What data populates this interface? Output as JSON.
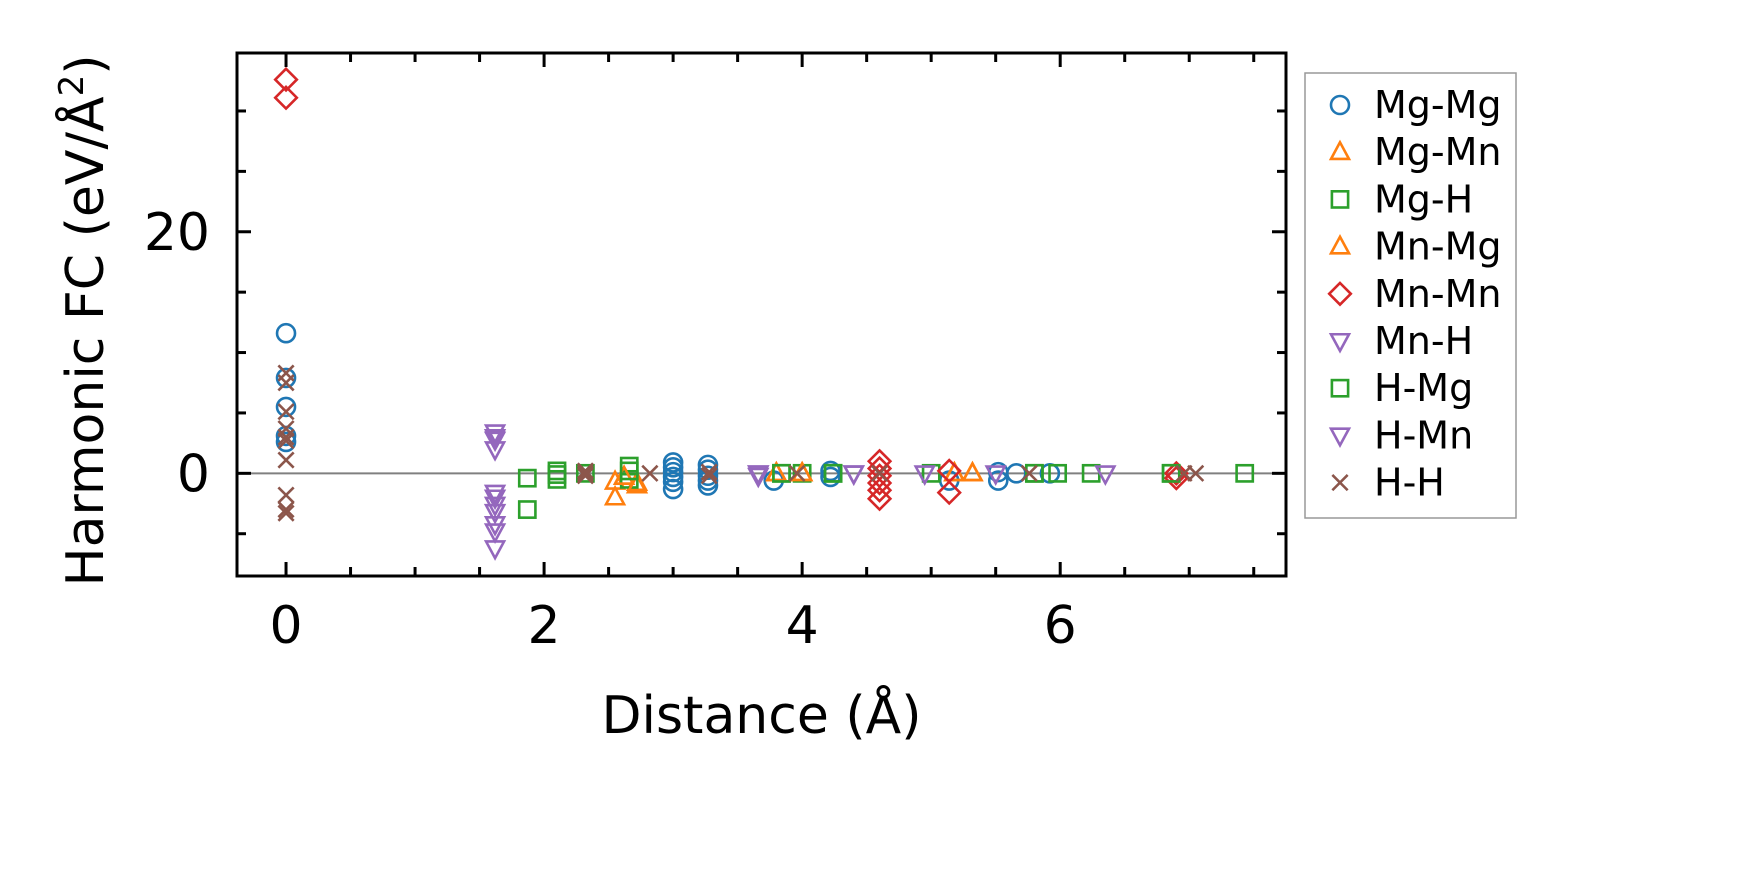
{
  "chart_data": {
    "type": "scatter",
    "title": "",
    "xlabel": "Distance (Å)",
    "ylabel_main": "Harmonic FC (eV/Å",
    "ylabel_sup": "2",
    "ylabel_close": ")",
    "xlim": [
      -0.38,
      7.75
    ],
    "ylim": [
      -8.5,
      34.8
    ],
    "xticks": [
      0,
      2,
      4,
      6
    ],
    "xtick_labels": [
      "0",
      "2",
      "4",
      "6"
    ],
    "yticks": [
      0,
      20
    ],
    "ytick_labels": [
      "0",
      "20"
    ],
    "zero_line": 0,
    "grid": false,
    "legend_position": "outside-right",
    "series": [
      {
        "name": "Mg-Mg",
        "marker": "circle",
        "color": "#1f77b4",
        "x": [
          0,
          0,
          0,
          0,
          0,
          3.0,
          3.0,
          3.0,
          3.0,
          3.0,
          3.0,
          3.27,
          3.27,
          3.27,
          3.27,
          3.27,
          3.78,
          4.22,
          4.22,
          5.14,
          5.52,
          5.52,
          5.66,
          5.92
        ],
        "y": [
          11.6,
          7.9,
          5.5,
          3.1,
          2.6,
          0.9,
          0.5,
          0.1,
          -0.3,
          -0.7,
          -1.3,
          0.7,
          0.3,
          -0.2,
          -0.6,
          -1.0,
          -0.6,
          0.2,
          -0.3,
          -0.6,
          0.1,
          -0.6,
          0.0,
          0.0
        ]
      },
      {
        "name": "Mg-Mn",
        "marker": "triangle-up",
        "color": "#ff7f0e",
        "x": [
          2.55,
          2.62,
          2.72,
          3.8,
          4.0,
          5.18,
          5.32
        ],
        "y": [
          -0.7,
          -0.3,
          -0.8,
          0.0,
          0.0,
          0.0,
          0.0
        ]
      },
      {
        "name": "Mg-H",
        "marker": "square",
        "color": "#2ca02c",
        "x": [
          1.87,
          1.87,
          2.1,
          2.1,
          2.32,
          2.66,
          2.66,
          3.84,
          4.0,
          4.24,
          5.0,
          5.8,
          5.98,
          6.24,
          6.86,
          7.43
        ],
        "y": [
          -0.4,
          -3.0,
          0.2,
          -0.5,
          0.0,
          0.6,
          -0.5,
          0.0,
          0.0,
          0.0,
          0.0,
          0.0,
          0.0,
          0.0,
          0.0,
          0.0
        ]
      },
      {
        "name": "Mn-Mg",
        "marker": "triangle-up",
        "color": "#ff7f0e",
        "x": [
          2.55,
          2.62,
          2.72,
          3.8,
          4.0,
          5.18,
          5.32
        ],
        "y": [
          -2.0,
          -0.3,
          -1.0,
          0.0,
          0.0,
          0.0,
          0.0
        ]
      },
      {
        "name": "Mn-Mn",
        "marker": "diamond",
        "color": "#d62728",
        "x": [
          0,
          0,
          4.6,
          4.6,
          4.6,
          4.6,
          4.6,
          4.6,
          5.14,
          5.14,
          6.9,
          6.9
        ],
        "y": [
          32.6,
          31.1,
          1.0,
          0.4,
          -0.2,
          -0.8,
          -1.4,
          -2.1,
          0.2,
          -1.6,
          0.0,
          -0.4
        ]
      },
      {
        "name": "Mn-H",
        "marker": "triangle-down",
        "color": "#9467bd",
        "x": [
          1.62,
          1.62,
          1.62,
          1.62,
          1.62,
          1.62,
          1.62,
          3.66,
          3.66,
          4.4,
          4.95,
          5.5,
          6.35
        ],
        "y": [
          3.4,
          2.8,
          2.0,
          -1.6,
          -2.6,
          -4.2,
          -6.2,
          0.0,
          -0.2,
          0.0,
          0.0,
          0.0,
          0.0
        ]
      },
      {
        "name": "H-Mg",
        "marker": "square",
        "color": "#2ca02c",
        "x": [
          2.1,
          2.66,
          3.84,
          4.24,
          5.8,
          6.86
        ],
        "y": [
          -0.1,
          0.2,
          0.0,
          0.0,
          0.0,
          0.0
        ]
      },
      {
        "name": "H-Mn",
        "marker": "triangle-down",
        "color": "#9467bd",
        "x": [
          1.62,
          1.62,
          1.62,
          1.62,
          3.66,
          4.4
        ],
        "y": [
          3.0,
          -2.0,
          -3.2,
          -4.8,
          0.0,
          0.0
        ]
      },
      {
        "name": "H-H",
        "marker": "x",
        "color": "#8c564b",
        "x": [
          0,
          0,
          0,
          0,
          0,
          0,
          0,
          0,
          0,
          0,
          2.32,
          2.32,
          2.32,
          2.82,
          3.28,
          3.28,
          3.96,
          4.6,
          5.76,
          6.96,
          7.05
        ],
        "y": [
          8.3,
          7.5,
          5.1,
          3.7,
          3.0,
          2.7,
          1.1,
          -1.8,
          -3.0,
          -3.3,
          0.2,
          0.0,
          -0.2,
          0.0,
          0.1,
          -0.2,
          0.0,
          0.0,
          0.0,
          0.0,
          0.0
        ]
      }
    ]
  }
}
